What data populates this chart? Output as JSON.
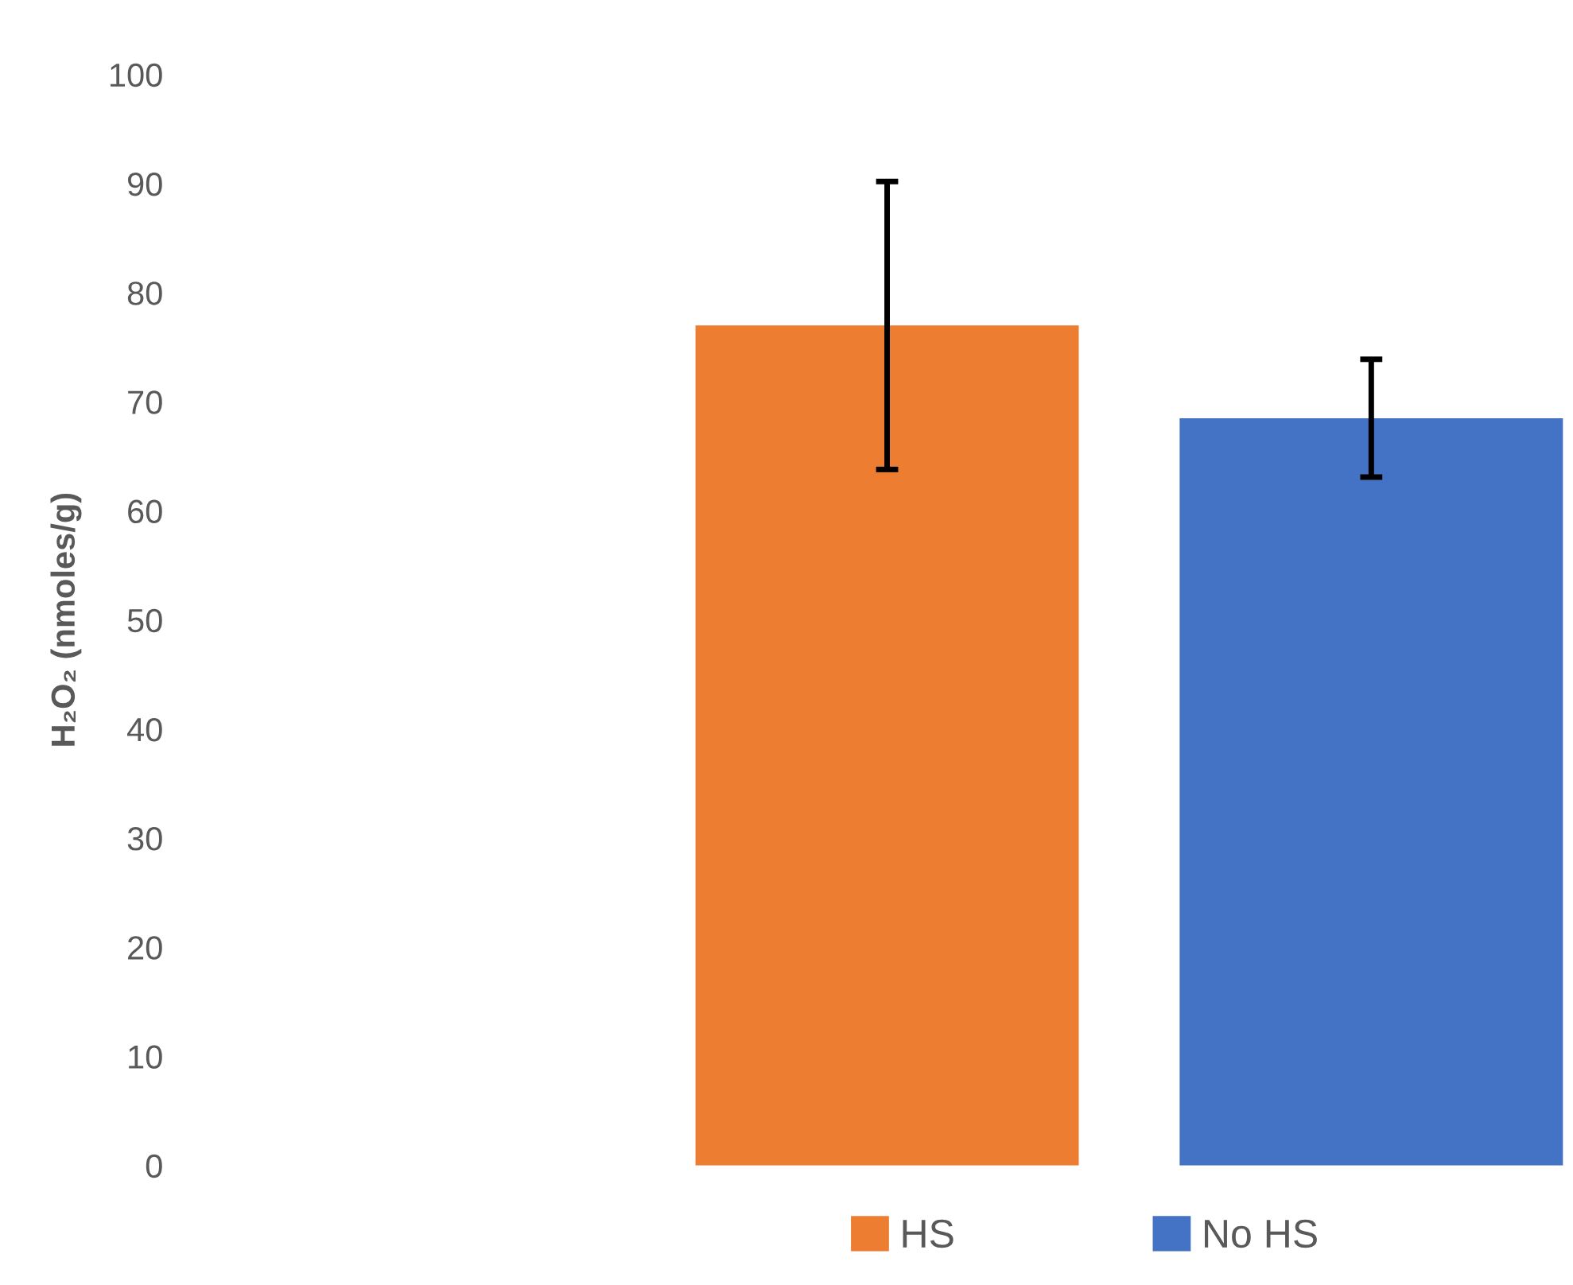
{
  "chart_data": {
    "type": "bar",
    "ylabel": "H₂O₂ (nmoles/g)",
    "categories": [
      null
    ],
    "series": [
      {
        "name": "HS",
        "color": "#ed7d31",
        "values": [
          77.0
        ],
        "errors": [
          13.2
        ]
      },
      {
        "name": "No HS",
        "color": "#4472c4",
        "values": [
          68.5
        ],
        "errors": [
          5.4
        ]
      }
    ],
    "ylim": [
      0,
      100
    ],
    "yticks": [
      0,
      10,
      20,
      30,
      40,
      50,
      60,
      70,
      80,
      90,
      100
    ],
    "legend": "bottom",
    "tick_labels": "y"
  }
}
